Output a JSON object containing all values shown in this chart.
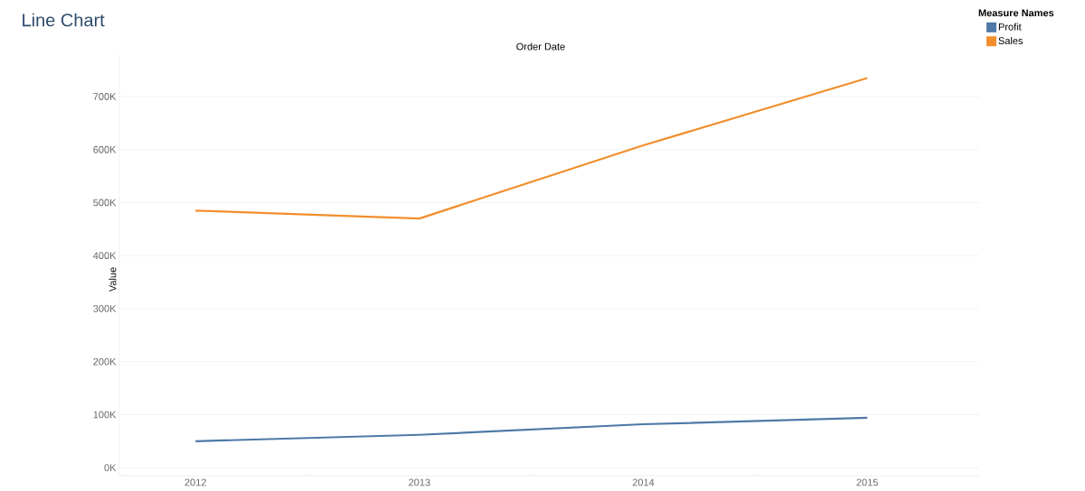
{
  "chart_data": {
    "type": "line",
    "title": "Line Chart",
    "xlabel": "Order Date",
    "ylabel": "Value",
    "legend_title": "Measure Names",
    "categories": [
      "2012",
      "2013",
      "2014",
      "2015"
    ],
    "series": [
      {
        "name": "Profit",
        "color": "#4e79a7",
        "values": [
          50000,
          62000,
          82000,
          94000
        ]
      },
      {
        "name": "Sales",
        "color": "#f28e2b",
        "values": [
          485000,
          470000,
          608000,
          735000
        ]
      }
    ],
    "ylim": [
      -15000,
      780000
    ],
    "yticks": [
      {
        "value": 0,
        "label": "0K"
      },
      {
        "value": 100000,
        "label": "100K"
      },
      {
        "value": 200000,
        "label": "200K"
      },
      {
        "value": 300000,
        "label": "300K"
      },
      {
        "value": 400000,
        "label": "400K"
      },
      {
        "value": 500000,
        "label": "500K"
      },
      {
        "value": 600000,
        "label": "600K"
      },
      {
        "value": 700000,
        "label": "700K"
      }
    ],
    "grid": "y",
    "legend": "top right"
  }
}
